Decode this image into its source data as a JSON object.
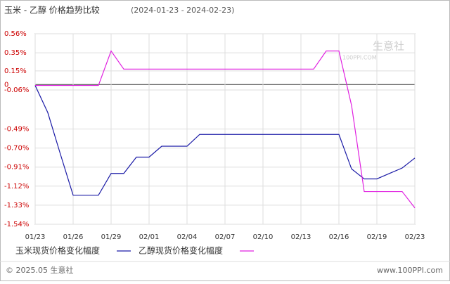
{
  "chart_data": {
    "type": "line",
    "title": "玉米 - 乙醇 价格趋势比较",
    "subtitle": "(2024-01-23 - 2024-02-23)",
    "categories": [
      "01/23",
      null,
      null,
      "01/26",
      null,
      null,
      "01/29",
      null,
      null,
      "02/01",
      null,
      null,
      "02/04",
      null,
      null,
      "02/07",
      null,
      null,
      "02/10",
      null,
      null,
      "02/13",
      null,
      null,
      "02/16",
      null,
      null,
      "02/19",
      null,
      null,
      "02/23"
    ],
    "series": [
      {
        "name": "玉米现货价格变化幅度",
        "color": "#1a1aa6",
        "values": [
          -0.01,
          -0.31,
          -0.77,
          -1.22,
          -1.22,
          -1.22,
          -0.98,
          -0.98,
          -0.8,
          -0.8,
          -0.68,
          -0.68,
          -0.68,
          -0.55,
          -0.55,
          -0.55,
          -0.55,
          -0.55,
          -0.55,
          -0.55,
          -0.55,
          -0.55,
          -0.55,
          -0.55,
          -0.55,
          -0.93,
          -1.04,
          -1.04,
          -0.98,
          -0.92,
          -0.81
        ]
      },
      {
        "name": "乙醇现货价格变化幅度",
        "color": "#e020e0",
        "values": [
          -0.01,
          -0.01,
          -0.01,
          -0.01,
          -0.01,
          -0.01,
          0.37,
          0.17,
          0.17,
          0.17,
          0.17,
          0.17,
          0.17,
          0.17,
          0.17,
          0.17,
          0.17,
          0.17,
          0.17,
          0.17,
          0.17,
          0.17,
          0.17,
          0.37,
          0.37,
          -0.23,
          -1.18,
          -1.18,
          -1.18,
          -1.18,
          -1.36
        ]
      }
    ],
    "ylim": [
      -1.54,
      0.56
    ],
    "yticks": [
      {
        "value": 0.56,
        "label": "0.56%"
      },
      {
        "value": 0.35,
        "label": "0.35%"
      },
      {
        "value": 0.15,
        "label": "0.15%"
      },
      {
        "value": -0.06,
        "label": "-0.06%"
      },
      0,
      {
        "value": -0.49,
        "label": "-0.49%"
      },
      {
        "value": -0.7,
        "label": "-0.70%"
      },
      {
        "value": -0.91,
        "label": "-0.91%"
      },
      {
        "value": -1.12,
        "label": "-1.12%"
      },
      {
        "value": -1.33,
        "label": "-1.33%"
      },
      {
        "value": -1.54,
        "label": "-1.54%"
      }
    ],
    "grid": true,
    "watermark": "生意社",
    "watermark_url": "100PPI.COM",
    "footer_left": "© 2025.05 生意社",
    "footer_right": "www.100PPI.com"
  }
}
